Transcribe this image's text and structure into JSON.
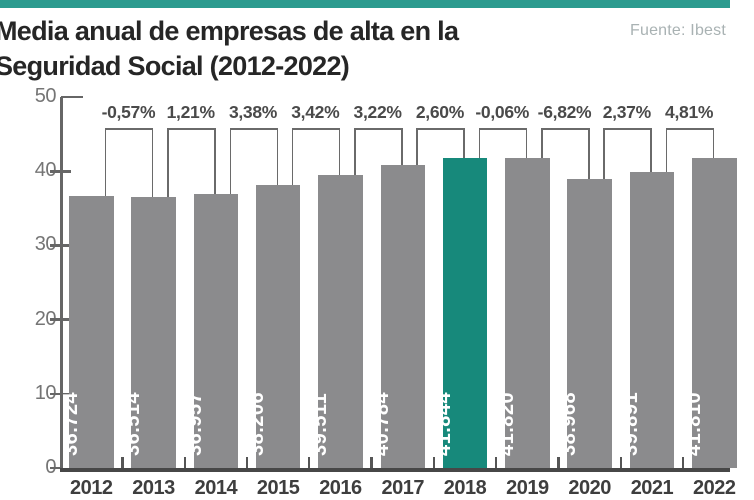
{
  "page": {
    "title_line1": "Media anual de empresas de alta en la",
    "title_line2": "Seguridad Social (2012-2022)",
    "source_label": "Fuente: Ibest",
    "top_strip_color": "#2c9b8f"
  },
  "chart_data": {
    "type": "bar",
    "title": "Media anual de empresas de alta en la Seguridad Social (2012-2022)",
    "source": "Fuente: Ibest",
    "categories": [
      "2012",
      "2013",
      "2014",
      "2015",
      "2016",
      "2017",
      "2018",
      "2019",
      "2020",
      "2021",
      "2022"
    ],
    "values": [
      36724,
      36514,
      36957,
      38206,
      39511,
      40784,
      41844,
      41820,
      38968,
      39891,
      41810
    ],
    "value_labels": [
      "36.724",
      "36.514",
      "36.957",
      "38.206",
      "39.511",
      "40.784",
      "41.844",
      "41.820",
      "38.968",
      "39.891",
      "41.810"
    ],
    "pct_change_labels": [
      "-0,57%",
      "1,21%",
      "3,38%",
      "3,42%",
      "3,22%",
      "2,60%",
      "-0,06%",
      "-6,82%",
      "2,37%",
      "4,81%"
    ],
    "highlight_category": "2018",
    "xlabel": "",
    "ylabel": "",
    "ylim": [
      0,
      50
    ],
    "yticks": [
      0,
      10,
      20,
      30,
      40,
      50
    ],
    "y_unit_scale": 1000,
    "grid": false,
    "legend": null,
    "bar_color": "#8b8b8d",
    "highlight_color": "#17897b",
    "bracket_color": "#6a6a6a",
    "axis_color": "#666666",
    "baseline_color": "#474747"
  }
}
